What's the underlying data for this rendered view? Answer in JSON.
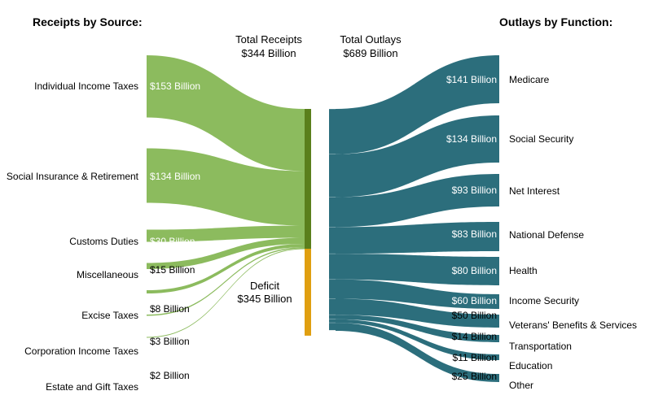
{
  "chart_data": {
    "type": "sankey",
    "receipts_heading": "Receipts by Source:",
    "outlays_heading": "Outlays by Function:",
    "total_receipts": {
      "label": "Total Receipts",
      "value": "$344 Billion",
      "amount": 344
    },
    "total_outlays": {
      "label": "Total Outlays",
      "value": "$689 Billion",
      "amount": 689
    },
    "deficit": {
      "label": "Deficit",
      "value": "$345 Billion",
      "amount": 345
    },
    "receipts": [
      {
        "name": "Individual Income Taxes",
        "value": 153,
        "label": "$153 Billion"
      },
      {
        "name": "Social Insurance & Retirement",
        "value": 134,
        "label": "$134 Billion"
      },
      {
        "name": "Customs Duties",
        "value": 30,
        "label": "$30 Billion"
      },
      {
        "name": "Miscellaneous",
        "value": 15,
        "label": "$15 Billion"
      },
      {
        "name": "Excise Taxes",
        "value": 8,
        "label": "$8 Billion"
      },
      {
        "name": "Corporation Income Taxes",
        "value": 3,
        "label": "$3 Billion"
      },
      {
        "name": "Estate and Gift Taxes",
        "value": 2,
        "label": "$2 Billion"
      }
    ],
    "outlays": [
      {
        "name": "Medicare",
        "value": 141,
        "label": "$141 Billion"
      },
      {
        "name": "Social Security",
        "value": 134,
        "label": "$134 Billion"
      },
      {
        "name": "Net Interest",
        "value": 93,
        "label": "$93 Billion"
      },
      {
        "name": "National Defense",
        "value": 83,
        "label": "$83 Billion"
      },
      {
        "name": "Health",
        "value": 80,
        "label": "$80 Billion"
      },
      {
        "name": "Income Security",
        "value": 60,
        "label": "$60 Billion"
      },
      {
        "name": "Veterans' Benefits & Services",
        "value": 50,
        "label": "$50 Billion"
      },
      {
        "name": "Transportation",
        "value": 14,
        "label": "$14 Billion"
      },
      {
        "name": "Education",
        "value": 11,
        "label": "$11 Billion"
      },
      {
        "name": "Other",
        "value": 25,
        "label": "$25 Billion"
      }
    ],
    "colors": {
      "receipts": "#8cbb5e",
      "receipts_node": "#5a7f1c",
      "deficit": "#e09f10",
      "outlays": "#2c6e7c",
      "outlay_value_text": "#ffffff"
    }
  }
}
